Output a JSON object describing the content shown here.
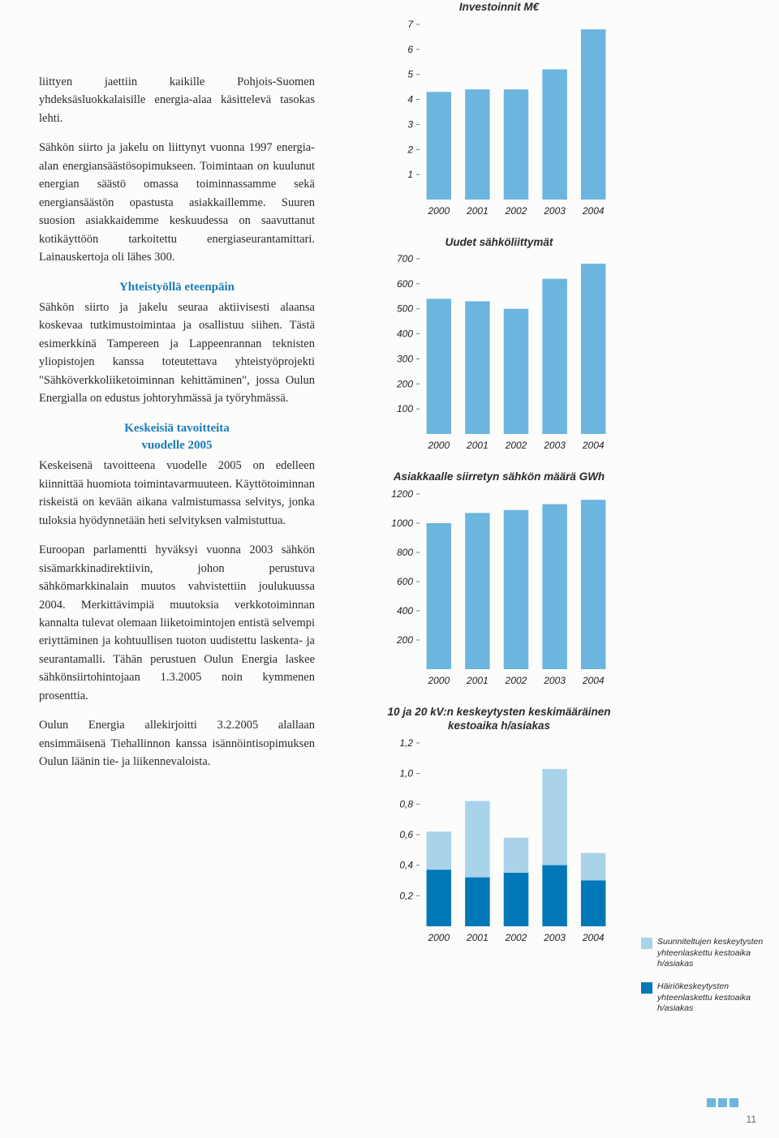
{
  "text": {
    "p1": "liittyen jaettiin kaikille Pohjois-Suomen yhdeksäsluokkalaisille energia-alaa käsittelevä tasokas lehti.",
    "p2": "Sähkön siirto ja jakelu on liittynyt vuonna 1997 energia-alan energiansäästösopimukseen. Toimintaan on kuulunut energian säästö omassa toiminnassamme sekä energiansäästön opastusta asiakkaillemme. Suuren suosion asiakkaidemme keskuudessa on saavuttanut kotikäyttöön tarkoitettu energiaseurantamittari. Lainauskertoja oli lähes 300.",
    "h1": "Yhteistyöllä eteenpäin",
    "p3": "Sähkön siirto ja jakelu seuraa aktiivisesti alaansa koskevaa tutkimustoimintaa ja osallistuu siihen. Tästä esimerkkinä Tampereen ja Lappeenrannan teknisten yliopistojen kanssa toteutettava yhteistyöprojekti \"Sähköverkkoliiketoiminnan kehittäminen\", jossa Oulun Energialla on edustus johtoryhmässä ja työryhmässä.",
    "h2a": "Keskeisiä tavoitteita",
    "h2b": "vuodelle 2005",
    "p4": "Keskeisenä tavoitteena vuodelle 2005 on edelleen kiinnittää huomiota toimintavarmuuteen. Käyttötoiminnan riskeistä on kevään aikana valmistumassa selvitys, jonka tuloksia hyödynnetään heti selvityksen valmistuttua.",
    "p5": "Euroopan parlamentti hyväksyi vuonna 2003 sähkön sisämarkkinadirektiivin, johon perustuva sähkömarkkinalain muutos vahvistettiin joulukuussa 2004. Merkittävimpiä muutoksia verkkotoiminnan kannalta tulevat olemaan liiketoimintojen entistä selvempi eriyttäminen ja kohtuullisen tuoton uudistettu laskenta- ja seurantamalli. Tähän perustuen Oulun Energia laskee sähkönsiirtohintojaan 1.3.2005 noin kymmenen prosenttia.",
    "p6": "Oulun Energia allekirjoitti 3.2.2005 alallaan ensimmäisenä Tiehallinnon kanssa isännöintisopimuksen Oulun läänin tie- ja liikennevaloista.",
    "pageNum": "11"
  },
  "colors": {
    "bar_mid": "#6bb5de",
    "bar_light": "#a8d3eb",
    "bar_dark": "#0077b6",
    "axis": "#777777",
    "tick_label": "#222222"
  },
  "chart1": {
    "title": "Investoinnit M€",
    "categories": [
      "2000",
      "2001",
      "2002",
      "2003",
      "2004"
    ],
    "values": [
      4.3,
      4.4,
      4.4,
      5.2,
      6.8
    ],
    "ylim": [
      0,
      7
    ],
    "ystep": 1,
    "bar_color": "#6bb5de"
  },
  "chart2": {
    "title": "Uudet sähköliittymät",
    "categories": [
      "2000",
      "2001",
      "2002",
      "2003",
      "2004"
    ],
    "values": [
      540,
      530,
      500,
      620,
      680
    ],
    "ylim": [
      0,
      700
    ],
    "ystep": 100,
    "bar_color": "#6bb5de"
  },
  "chart3": {
    "title": "Asiakkaalle siirretyn sähkön määrä GWh",
    "categories": [
      "2000",
      "2001",
      "2002",
      "2003",
      "2004"
    ],
    "values": [
      1000,
      1070,
      1090,
      1130,
      1160
    ],
    "ylim": [
      0,
      1200
    ],
    "ystep": 200,
    "bar_color": "#6bb5de"
  },
  "chart4": {
    "title": "10 ja 20 kV:n keskeytysten keskimääräinen kestoaika h/asiakas",
    "categories": [
      "2000",
      "2001",
      "2002",
      "2003",
      "2004"
    ],
    "series_light": [
      0.62,
      0.82,
      0.58,
      1.03,
      0.48
    ],
    "series_dark": [
      0.37,
      0.32,
      0.35,
      0.4,
      0.3
    ],
    "ylim": [
      0,
      1.2
    ],
    "ystep": 0.2,
    "light_color": "#a8d3eb",
    "dark_color": "#0077b6"
  },
  "legend": {
    "item1": "Suunniteltujen keskeytysten yhteenlaskettu kestoaika h/asiakas",
    "item2": "Häiriökeskeytysten yhteenlaskettu kestoaika h/asiakas"
  },
  "footer_colors": [
    "#6bb5de",
    "#6bb5de",
    "#6bb5de"
  ]
}
